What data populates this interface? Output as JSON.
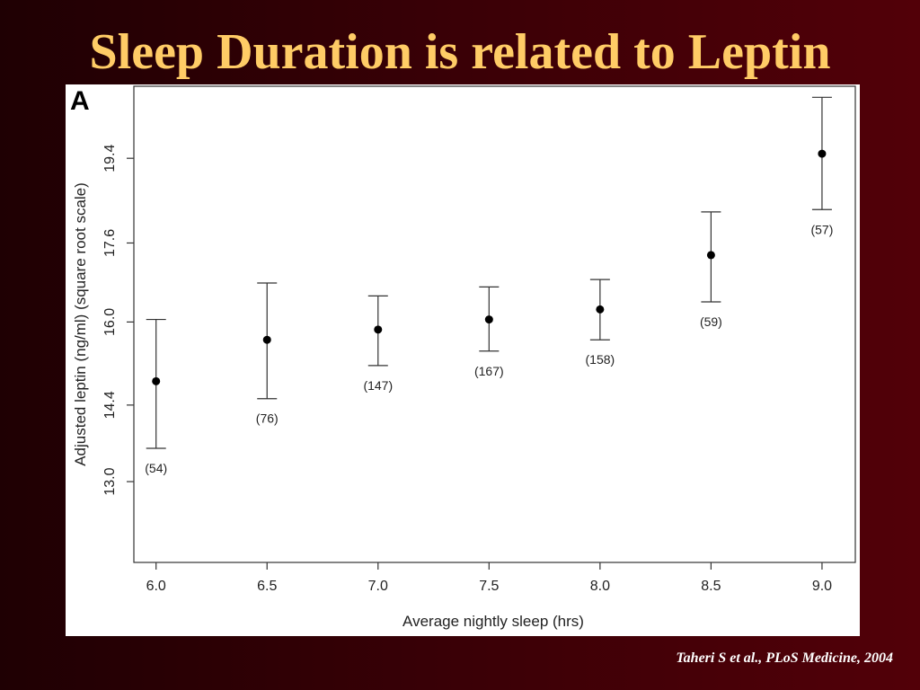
{
  "slide": {
    "title": "Sleep Duration is related to Leptin",
    "citation": "Taheri S et al., PLoS Medicine, 2004",
    "title_color": "#ffcc66"
  },
  "chart_data": {
    "type": "scatter",
    "panel_label": "A",
    "title": "",
    "xlabel": "Average nightly sleep (hrs)",
    "ylabel": "Adjusted leptin (ng/ml) (square root scale)",
    "y_scale": "sqrt",
    "xlim": [
      5.9,
      9.15
    ],
    "ylim": [
      11.6,
      21.0
    ],
    "x_ticks": [
      6.0,
      6.5,
      7.0,
      7.5,
      8.0,
      8.5,
      9.0
    ],
    "x_tick_labels": [
      "6.0",
      "6.5",
      "7.0",
      "7.5",
      "8.0",
      "8.5",
      "9.0"
    ],
    "y_ticks": [
      13.0,
      14.4,
      16.0,
      17.6,
      19.4
    ],
    "y_tick_labels": [
      "13.0",
      "14.4",
      "16.0",
      "17.6",
      "19.4"
    ],
    "grid": false,
    "legend": "none",
    "points": [
      {
        "x": 6.0,
        "y": 14.85,
        "lower": 13.6,
        "upper": 16.05,
        "n_label": "(54)"
      },
      {
        "x": 6.5,
        "y": 15.65,
        "lower": 14.52,
        "upper": 16.78,
        "n_label": "(76)"
      },
      {
        "x": 7.0,
        "y": 15.85,
        "lower": 15.15,
        "upper": 16.52,
        "n_label": "(147)"
      },
      {
        "x": 7.5,
        "y": 16.05,
        "lower": 15.43,
        "upper": 16.7,
        "n_label": "(167)"
      },
      {
        "x": 8.0,
        "y": 16.25,
        "lower": 15.65,
        "upper": 16.85,
        "n_label": "(158)"
      },
      {
        "x": 8.5,
        "y": 17.35,
        "lower": 16.4,
        "upper": 18.25,
        "n_label": "(59)"
      },
      {
        "x": 9.0,
        "y": 19.5,
        "lower": 18.3,
        "upper": 20.75,
        "n_label": "(57)"
      }
    ]
  }
}
